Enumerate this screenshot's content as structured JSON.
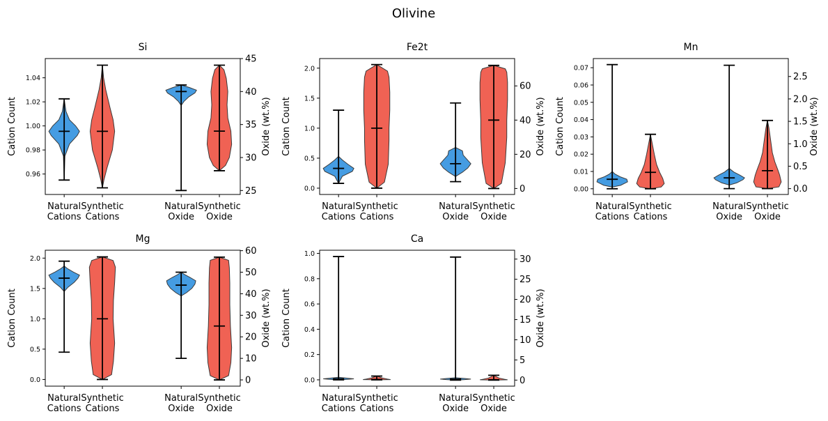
{
  "figure": {
    "title": "Olivine"
  },
  "colors": {
    "natural": "#3b97e0",
    "synthetic": "#ef5a4b",
    "edge": "#3a3a3a",
    "line": "#000000"
  },
  "chart_data": [
    {
      "type": "violin",
      "title": "Si",
      "categories": [
        "Natural\nCations",
        "Synthetic\nCations",
        "Natural\nOxide",
        "Synthetic\nOxide"
      ],
      "ylabel_left": "Cation Count",
      "ylabel_right": "Oxide (wt.%)",
      "ylim_left": [
        0.943,
        1.056
      ],
      "ylim_right": [
        24.4,
        45.0
      ],
      "yticks_left": [
        0.96,
        0.98,
        1.0,
        1.02,
        1.04
      ],
      "yticks_right": [
        25,
        30,
        35,
        40,
        45
      ],
      "series": [
        {
          "name": "Natural Cations",
          "axis": "left",
          "min": 0.955,
          "max": 1.0225,
          "median": 0.9955,
          "profile": [
            [
              0.955,
              0.0
            ],
            [
              0.975,
              0.05
            ],
            [
              0.985,
              0.35
            ],
            [
              0.992,
              0.85
            ],
            [
              0.9955,
              1.0
            ],
            [
              1.0,
              0.75
            ],
            [
              1.005,
              0.35
            ],
            [
              1.012,
              0.12
            ],
            [
              1.0225,
              0.0
            ]
          ]
        },
        {
          "name": "Synthetic Cations",
          "axis": "left",
          "min": 0.9485,
          "max": 1.0505,
          "median": 0.9955,
          "profile": [
            [
              0.9485,
              0.0
            ],
            [
              0.955,
              0.1
            ],
            [
              0.965,
              0.3
            ],
            [
              0.98,
              0.65
            ],
            [
              0.9955,
              0.8
            ],
            [
              1.005,
              0.7
            ],
            [
              1.015,
              0.5
            ],
            [
              1.03,
              0.22
            ],
            [
              1.04,
              0.08
            ],
            [
              1.0505,
              0.0
            ]
          ]
        },
        {
          "name": "Natural Oxide",
          "axis": "right",
          "min": 25.0,
          "max": 41.0,
          "median": 40.0,
          "profile": [
            [
              37.9,
              0.0
            ],
            [
              38.5,
              0.18
            ],
            [
              39.2,
              0.5
            ],
            [
              39.8,
              0.9
            ],
            [
              40.2,
              1.0
            ],
            [
              40.6,
              0.55
            ],
            [
              41.0,
              0.0
            ]
          ]
        },
        {
          "name": "Synthetic Oxide",
          "axis": "right",
          "min": 28.0,
          "max": 44.0,
          "median": 34.0,
          "profile": [
            [
              28.0,
              0.0
            ],
            [
              28.8,
              0.4
            ],
            [
              30.0,
              0.65
            ],
            [
              32.0,
              0.8
            ],
            [
              34.0,
              0.75
            ],
            [
              36.0,
              0.55
            ],
            [
              38.0,
              0.5
            ],
            [
              40.0,
              0.55
            ],
            [
              42.0,
              0.45
            ],
            [
              43.3,
              0.3
            ],
            [
              44.0,
              0.0
            ]
          ]
        }
      ]
    },
    {
      "type": "violin",
      "title": "Fe2t",
      "categories": [
        "Natural\nCations",
        "Synthetic\nCations",
        "Natural\nOxide",
        "Synthetic\nOxide"
      ],
      "ylabel_left": "Cation Count",
      "ylabel_right": "Oxide (wt.%)",
      "ylim_left": [
        -0.105,
        2.16
      ],
      "ylim_right": [
        -3.5,
        76.0
      ],
      "yticks_left": [
        0.0,
        0.5,
        1.0,
        1.5,
        2.0
      ],
      "yticks_right": [
        0,
        20,
        40,
        60
      ],
      "series": [
        {
          "name": "Natural Cations",
          "axis": "left",
          "min": 0.08,
          "max": 1.3,
          "median": 0.33,
          "profile": [
            [
              0.08,
              0.0
            ],
            [
              0.2,
              0.25
            ],
            [
              0.28,
              0.9
            ],
            [
              0.33,
              1.0
            ],
            [
              0.4,
              0.6
            ],
            [
              0.47,
              0.25
            ],
            [
              0.53,
              0.0
            ]
          ]
        },
        {
          "name": "Synthetic Cations",
          "axis": "left",
          "min": 0.0,
          "max": 2.06,
          "median": 1.0,
          "profile": [
            [
              0.0,
              0.0
            ],
            [
              0.1,
              0.5
            ],
            [
              0.4,
              0.75
            ],
            [
              0.8,
              0.8
            ],
            [
              1.0,
              0.8
            ],
            [
              1.3,
              0.85
            ],
            [
              1.6,
              0.85
            ],
            [
              1.85,
              0.8
            ],
            [
              1.95,
              0.7
            ],
            [
              2.06,
              0.0
            ]
          ]
        },
        {
          "name": "Natural Oxide",
          "axis": "right",
          "min": 4.0,
          "max": 50.0,
          "median": 14.5,
          "profile": [
            [
              7.0,
              0.0
            ],
            [
              9.5,
              0.45
            ],
            [
              12.0,
              0.8
            ],
            [
              14.5,
              1.0
            ],
            [
              17.0,
              0.75
            ],
            [
              19.5,
              0.5
            ],
            [
              22.0,
              0.45
            ],
            [
              24.0,
              0.0
            ]
          ]
        },
        {
          "name": "Synthetic Oxide",
          "axis": "right",
          "min": 0.0,
          "max": 72.0,
          "median": 40.0,
          "profile": [
            [
              0.0,
              0.0
            ],
            [
              3.0,
              0.5
            ],
            [
              15.0,
              0.75
            ],
            [
              30.0,
              0.85
            ],
            [
              40.0,
              0.85
            ],
            [
              52.0,
              0.9
            ],
            [
              62.0,
              0.9
            ],
            [
              68.0,
              0.85
            ],
            [
              70.0,
              0.75
            ],
            [
              72.0,
              0.0
            ]
          ]
        }
      ]
    },
    {
      "type": "violin",
      "title": "Mn",
      "categories": [
        "Natural\nCations",
        "Synthetic\nCations",
        "Natural\nOxide",
        "Synthetic\nOxide"
      ],
      "ylabel_left": "Cation Count",
      "ylabel_right": "Oxide (wt.%)",
      "ylim_left": [
        -0.0033,
        0.0753
      ],
      "ylim_right": [
        -0.13,
        2.9
      ],
      "yticks_left": [
        0.0,
        0.01,
        0.02,
        0.03,
        0.04,
        0.05,
        0.06,
        0.07
      ],
      "yticks_right": [
        0.0,
        0.5,
        1.0,
        1.5,
        2.0,
        2.5
      ],
      "series": [
        {
          "name": "Natural Cations",
          "axis": "left",
          "min": 0.0,
          "max": 0.0718,
          "median": 0.0055,
          "profile": [
            [
              0.001,
              0.0
            ],
            [
              0.002,
              0.55
            ],
            [
              0.004,
              1.0
            ],
            [
              0.0055,
              0.95
            ],
            [
              0.007,
              0.5
            ],
            [
              0.0085,
              0.18
            ],
            [
              0.01,
              0.0
            ]
          ]
        },
        {
          "name": "Synthetic Cations",
          "axis": "left",
          "min": 0.0,
          "max": 0.0315,
          "median": 0.0095,
          "profile": [
            [
              0.0,
              0.0
            ],
            [
              0.001,
              0.7
            ],
            [
              0.003,
              0.9
            ],
            [
              0.006,
              0.8
            ],
            [
              0.0095,
              0.6
            ],
            [
              0.014,
              0.4
            ],
            [
              0.02,
              0.25
            ],
            [
              0.026,
              0.12
            ],
            [
              0.0315,
              0.0
            ]
          ]
        },
        {
          "name": "Natural Oxide",
          "axis": "right",
          "min": 0.0,
          "max": 2.75,
          "median": 0.24,
          "profile": [
            [
              0.08,
              0.0
            ],
            [
              0.13,
              0.5
            ],
            [
              0.2,
              0.9
            ],
            [
              0.24,
              1.0
            ],
            [
              0.3,
              0.7
            ],
            [
              0.37,
              0.3
            ],
            [
              0.45,
              0.0
            ]
          ]
        },
        {
          "name": "Synthetic Oxide",
          "axis": "right",
          "min": 0.0,
          "max": 1.52,
          "median": 0.4,
          "profile": [
            [
              0.0,
              0.0
            ],
            [
              0.04,
              0.75
            ],
            [
              0.15,
              0.9
            ],
            [
              0.3,
              0.8
            ],
            [
              0.4,
              0.7
            ],
            [
              0.6,
              0.48
            ],
            [
              0.8,
              0.32
            ],
            [
              1.1,
              0.2
            ],
            [
              1.35,
              0.1
            ],
            [
              1.52,
              0.0
            ]
          ]
        }
      ]
    },
    {
      "type": "violin",
      "title": "Mg",
      "categories": [
        "Natural\nCations",
        "Synthetic\nCations",
        "Natural\nOxide",
        "Synthetic\nOxide"
      ],
      "ylabel_left": "Cation Count",
      "ylabel_right": "Oxide (wt.%)",
      "ylim_left": [
        -0.11,
        2.13
      ],
      "ylim_right": [
        -2.9,
        60.2
      ],
      "yticks_left": [
        0.0,
        0.5,
        1.0,
        1.5,
        2.0
      ],
      "yticks_right": [
        0,
        10,
        20,
        30,
        40,
        50,
        60
      ],
      "series": [
        {
          "name": "Natural Cations",
          "axis": "left",
          "min": 0.45,
          "max": 1.95,
          "median": 1.67,
          "profile": [
            [
              1.45,
              0.0
            ],
            [
              1.52,
              0.25
            ],
            [
              1.6,
              0.65
            ],
            [
              1.67,
              0.9
            ],
            [
              1.72,
              1.0
            ],
            [
              1.77,
              0.6
            ],
            [
              1.83,
              0.2
            ],
            [
              1.87,
              0.0
            ]
          ]
        },
        {
          "name": "Synthetic Cations",
          "axis": "left",
          "min": 0.0,
          "max": 2.02,
          "median": 1.0,
          "profile": [
            [
              0.0,
              0.0
            ],
            [
              0.08,
              0.6
            ],
            [
              0.3,
              0.72
            ],
            [
              0.6,
              0.8
            ],
            [
              1.0,
              0.7
            ],
            [
              1.3,
              0.72
            ],
            [
              1.6,
              0.8
            ],
            [
              1.85,
              0.85
            ],
            [
              1.96,
              0.7
            ],
            [
              2.02,
              0.0
            ]
          ]
        },
        {
          "name": "Natural Oxide",
          "axis": "right",
          "min": 10.0,
          "max": 50.0,
          "median": 44.0,
          "profile": [
            [
              39.0,
              0.0
            ],
            [
              40.5,
              0.35
            ],
            [
              42.5,
              0.7
            ],
            [
              44.5,
              0.9
            ],
            [
              46.0,
              0.95
            ],
            [
              47.5,
              0.6
            ],
            [
              49.0,
              0.2
            ],
            [
              50.0,
              0.0
            ]
          ]
        },
        {
          "name": "Synthetic Oxide",
          "axis": "right",
          "min": 0.0,
          "max": 57.0,
          "median": 25.0,
          "profile": [
            [
              0.0,
              0.0
            ],
            [
              2.0,
              0.6
            ],
            [
              8.0,
              0.75
            ],
            [
              15.0,
              0.8
            ],
            [
              25.0,
              0.72
            ],
            [
              35.0,
              0.68
            ],
            [
              45.0,
              0.68
            ],
            [
              52.0,
              0.65
            ],
            [
              55.5,
              0.6
            ],
            [
              57.0,
              0.0
            ]
          ]
        }
      ]
    },
    {
      "type": "violin",
      "title": "Ca",
      "categories": [
        "Natural\nCations",
        "Synthetic\nCations",
        "Natural\nOxide",
        "Synthetic\nOxide"
      ],
      "ylabel_left": "Cation Count",
      "ylabel_right": "Oxide (wt.%)",
      "ylim_left": [
        -0.05,
        1.025
      ],
      "ylim_right": [
        -1.5,
        32.2
      ],
      "yticks_left": [
        0.0,
        0.2,
        0.4,
        0.6,
        0.8,
        1.0
      ],
      "yticks_right": [
        0,
        5,
        10,
        15,
        20,
        25,
        30
      ],
      "series": [
        {
          "name": "Natural Cations",
          "axis": "left",
          "min": 0.0,
          "max": 0.975,
          "median": 0.008,
          "profile": [
            [
              0.0,
              0.0
            ],
            [
              0.004,
              0.6
            ],
            [
              0.008,
              1.0
            ],
            [
              0.013,
              0.6
            ],
            [
              0.02,
              0.0
            ]
          ]
        },
        {
          "name": "Synthetic Cations",
          "axis": "left",
          "min": 0.0,
          "max": 0.03,
          "median": 0.003,
          "profile": [
            [
              0.0,
              0.0
            ],
            [
              0.002,
              0.9
            ],
            [
              0.006,
              0.7
            ],
            [
              0.015,
              0.35
            ],
            [
              0.03,
              0.0
            ]
          ]
        },
        {
          "name": "Natural Oxide",
          "axis": "right",
          "min": 0.0,
          "max": 30.5,
          "median": 0.25,
          "profile": [
            [
              0.0,
              0.0
            ],
            [
              0.13,
              0.6
            ],
            [
              0.25,
              1.0
            ],
            [
              0.4,
              0.6
            ],
            [
              0.6,
              0.0
            ]
          ]
        },
        {
          "name": "Synthetic Oxide",
          "axis": "right",
          "min": 0.0,
          "max": 1.2,
          "median": 0.1,
          "profile": [
            [
              0.0,
              0.0
            ],
            [
              0.07,
              0.9
            ],
            [
              0.2,
              0.7
            ],
            [
              0.5,
              0.35
            ],
            [
              1.2,
              0.0
            ]
          ]
        }
      ]
    }
  ]
}
